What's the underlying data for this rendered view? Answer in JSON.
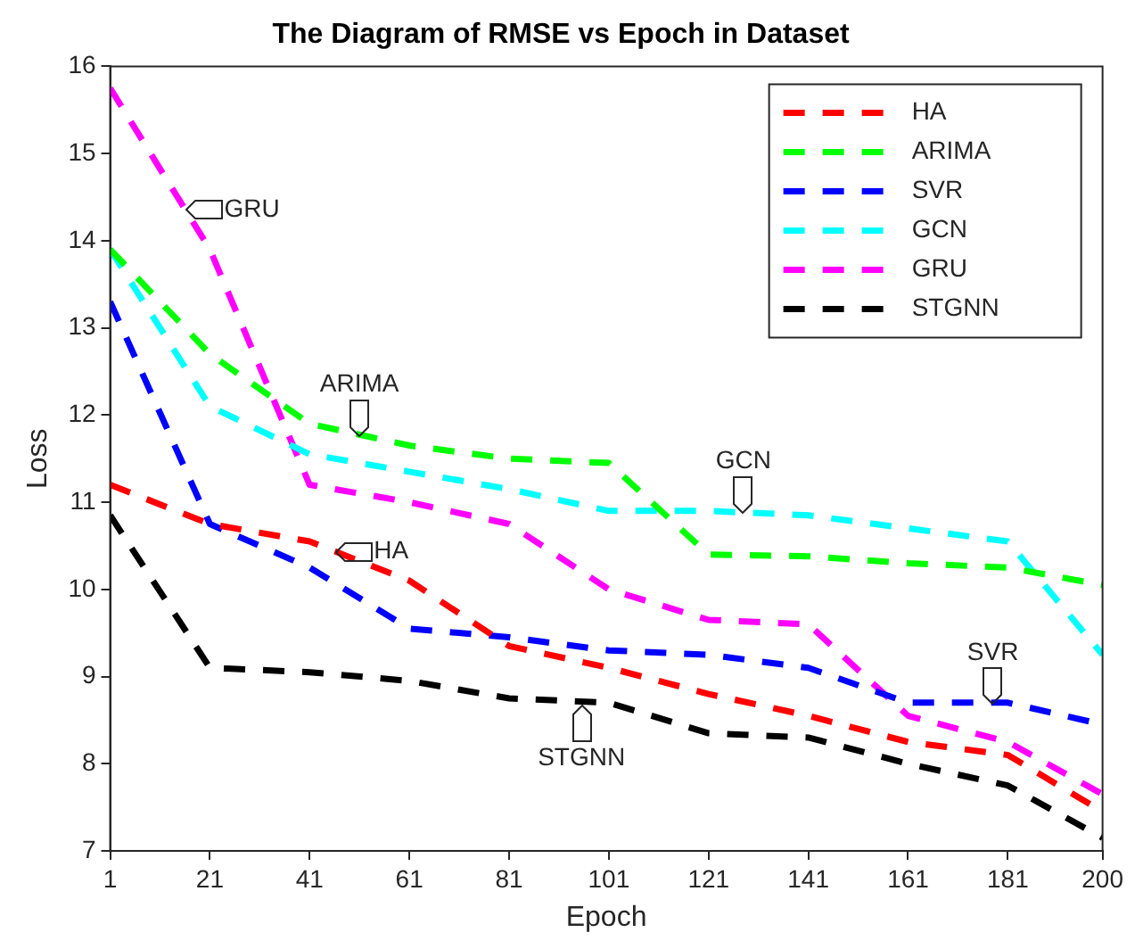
{
  "chart_data": {
    "type": "line",
    "title": "The Diagram of RMSE vs Epoch in Dataset",
    "xlabel": "Epoch",
    "ylabel": "Loss",
    "x": [
      1,
      21,
      41,
      61,
      81,
      101,
      121,
      141,
      161,
      181,
      200
    ],
    "series": [
      {
        "name": "HA",
        "color": "#ff0000",
        "values": [
          11.2,
          10.75,
          10.55,
          10.1,
          9.35,
          9.1,
          8.8,
          8.55,
          8.25,
          8.1,
          7.45
        ]
      },
      {
        "name": "ARIMA",
        "color": "#00ff00",
        "values": [
          13.9,
          12.7,
          11.9,
          11.65,
          11.5,
          11.45,
          10.4,
          10.38,
          10.3,
          10.25,
          10.05
        ]
      },
      {
        "name": "SVR",
        "color": "#0000ff",
        "values": [
          13.3,
          10.75,
          10.25,
          9.55,
          9.45,
          9.3,
          9.25,
          9.1,
          8.7,
          8.7,
          8.45
        ]
      },
      {
        "name": "GCN",
        "color": "#00ffff",
        "values": [
          13.9,
          12.1,
          11.55,
          11.35,
          11.15,
          10.9,
          10.9,
          10.85,
          10.7,
          10.55,
          9.25
        ]
      },
      {
        "name": "GRU",
        "color": "#ff00ff",
        "values": [
          15.75,
          13.9,
          11.2,
          11.0,
          10.75,
          10.0,
          9.65,
          9.6,
          8.55,
          8.25,
          7.65
        ]
      },
      {
        "name": "STGNN",
        "color": "#000000",
        "values": [
          10.85,
          9.1,
          9.05,
          8.95,
          8.75,
          8.7,
          8.35,
          8.3,
          8.0,
          7.75,
          7.15
        ]
      }
    ],
    "xlim": [
      1,
      200
    ],
    "xticks": [
      1,
      21,
      41,
      61,
      81,
      101,
      121,
      141,
      161,
      181,
      200
    ],
    "ylim": [
      7,
      16
    ],
    "yticks": [
      7,
      8,
      9,
      10,
      11,
      12,
      13,
      14,
      15,
      16
    ],
    "annotations": [
      {
        "text": "GRU",
        "x": 16,
        "y": 14.35
      },
      {
        "text": "ARIMA",
        "x": 51,
        "y": 11.75
      },
      {
        "text": "HA",
        "x": 46,
        "y": 10.43
      },
      {
        "text": "GCN",
        "x": 128,
        "y": 10.87
      },
      {
        "text": "SVR",
        "x": 178,
        "y": 8.68
      },
      {
        "text": "STGNN",
        "x": 95.5,
        "y": 8.68
      }
    ],
    "legend": "top right",
    "grid": false,
    "marker": "none",
    "line_style": "dashed"
  }
}
